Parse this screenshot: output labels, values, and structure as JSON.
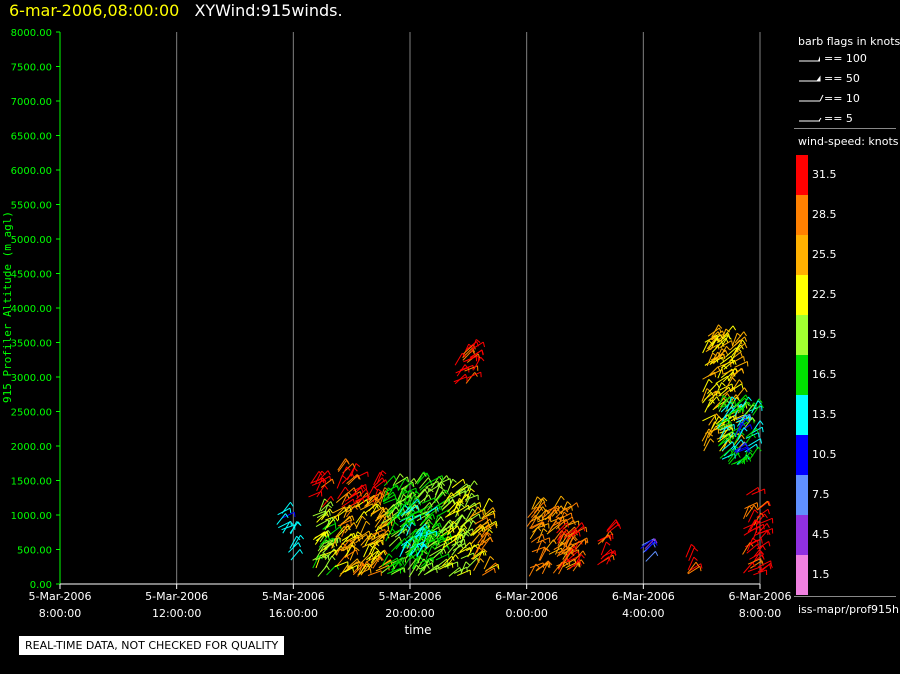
{
  "header": {
    "date": "6-mar-2006,08:00:00",
    "title": "XYWind:915winds."
  },
  "legend": {
    "barb_title": "barb flags in knots",
    "barbs": [
      {
        "label": "== 100",
        "icon": "pennant-barb-icon"
      },
      {
        "label": "== 50",
        "icon": "flag-barb-icon"
      },
      {
        "label": "== 10",
        "icon": "full-feather-barb-icon"
      },
      {
        "label": "== 5",
        "icon": "half-feather-barb-icon"
      }
    ],
    "speed_title": "wind-speed: knots",
    "colorbar": [
      {
        "label": "31.5",
        "color": "#ff0000"
      },
      {
        "label": "28.5",
        "color": "#ff8000"
      },
      {
        "label": "25.5",
        "color": "#ffb000"
      },
      {
        "label": "22.5",
        "color": "#ffff00"
      },
      {
        "label": "19.5",
        "color": "#a0ff30"
      },
      {
        "label": "16.5",
        "color": "#00e000"
      },
      {
        "label": "13.5",
        "color": "#00ffff"
      },
      {
        "label": "10.5",
        "color": "#0000ff"
      },
      {
        "label": "7.5",
        "color": "#6090ff"
      },
      {
        "label": "4.5",
        "color": "#9030e0"
      },
      {
        "label": "1.5",
        "color": "#f080e0"
      }
    ],
    "path_label": "iss-mapr/prof915h"
  },
  "quality_note": "REAL-TIME DATA, NOT CHECKED FOR QUALITY",
  "colors": {
    "axis": "#00ff00",
    "grid": "#808080",
    "title_date": "#ffff00"
  },
  "chart_data": {
    "type": "scatter",
    "title": "XYWind:915winds.",
    "xlabel": "time",
    "ylabel": "915 Profiler Altitude (m agl)",
    "xlim_hours_from_start": [
      0,
      24
    ],
    "ylim": [
      0,
      8000
    ],
    "x_ticks": [
      {
        "line1": "5-Mar-2006",
        "line2": "8:00:00",
        "h": 0
      },
      {
        "line1": "5-Mar-2006",
        "line2": "12:00:00",
        "h": 4
      },
      {
        "line1": "5-Mar-2006",
        "line2": "16:00:00",
        "h": 8
      },
      {
        "line1": "5-Mar-2006",
        "line2": "20:00:00",
        "h": 12
      },
      {
        "line1": "6-Mar-2006",
        "line2": "0:00:00",
        "h": 16
      },
      {
        "line1": "6-Mar-2006",
        "line2": "4:00:00",
        "h": 20
      },
      {
        "line1": "6-Mar-2006",
        "line2": "8:00:00",
        "h": 24
      }
    ],
    "y_ticks": [
      "0.00",
      "500.00",
      "1000.00",
      "1500.00",
      "2000.00",
      "2500.00",
      "3000.00",
      "3500.00",
      "4000.00",
      "4500.00",
      "5000.00",
      "5500.00",
      "6000.00",
      "6500.00",
      "7000.00",
      "7500.00",
      "8000.00"
    ],
    "grid": true,
    "legend_position": "right",
    "barb_clusters": [
      {
        "h_start": 7.4,
        "h_end": 7.7,
        "alt_min": 650,
        "alt_max": 1100,
        "speed": 12
      },
      {
        "h_start": 7.8,
        "h_end": 8.0,
        "alt_min": 300,
        "alt_max": 800,
        "speed": 13
      },
      {
        "h_start": 8.6,
        "h_end": 9.3,
        "alt_min": 100,
        "alt_max": 1100,
        "speed": 20
      },
      {
        "h_start": 8.5,
        "h_end": 9.0,
        "alt_min": 1100,
        "alt_max": 1500,
        "speed": 32
      },
      {
        "h_start": 9.3,
        "h_end": 11.0,
        "alt_min": 100,
        "alt_max": 1200,
        "speed": 25
      },
      {
        "h_start": 9.5,
        "h_end": 10.2,
        "alt_min": 1100,
        "alt_max": 1700,
        "speed": 31
      },
      {
        "h_start": 10.5,
        "h_end": 11.0,
        "alt_min": 1100,
        "alt_max": 1500,
        "speed": 30
      },
      {
        "h_start": 11.0,
        "h_end": 13.0,
        "alt_min": 100,
        "alt_max": 1500,
        "speed": 18
      },
      {
        "h_start": 11.5,
        "h_end": 12.6,
        "alt_min": 300,
        "alt_max": 1200,
        "speed": 15
      },
      {
        "h_start": 13.0,
        "h_end": 14.0,
        "alt_min": 100,
        "alt_max": 1400,
        "speed": 21
      },
      {
        "h_start": 14.0,
        "h_end": 14.6,
        "alt_min": 100,
        "alt_max": 1100,
        "speed": 26
      },
      {
        "h_start": 13.5,
        "h_end": 14.3,
        "alt_min": 2900,
        "alt_max": 3400,
        "speed": 32
      },
      {
        "h_start": 16.0,
        "h_end": 17.4,
        "alt_min": 100,
        "alt_max": 1100,
        "speed": 27
      },
      {
        "h_start": 17.0,
        "h_end": 17.7,
        "alt_min": 150,
        "alt_max": 800,
        "speed": 30
      },
      {
        "h_start": 18.4,
        "h_end": 18.8,
        "alt_min": 200,
        "alt_max": 800,
        "speed": 31
      },
      {
        "h_start": 19.9,
        "h_end": 20.1,
        "alt_min": 300,
        "alt_max": 600,
        "speed": 8
      },
      {
        "h_start": 21.4,
        "h_end": 21.6,
        "alt_min": 100,
        "alt_max": 400,
        "speed": 29
      },
      {
        "h_start": 22.0,
        "h_end": 23.2,
        "alt_min": 1900,
        "alt_max": 3600,
        "speed": 24
      },
      {
        "h_start": 22.5,
        "h_end": 23.8,
        "alt_min": 1700,
        "alt_max": 2600,
        "speed": 16
      },
      {
        "h_start": 23.0,
        "h_end": 23.3,
        "alt_min": 1800,
        "alt_max": 2400,
        "speed": 10
      },
      {
        "h_start": 23.4,
        "h_end": 24.0,
        "alt_min": 100,
        "alt_max": 1300,
        "speed": 32
      }
    ]
  }
}
